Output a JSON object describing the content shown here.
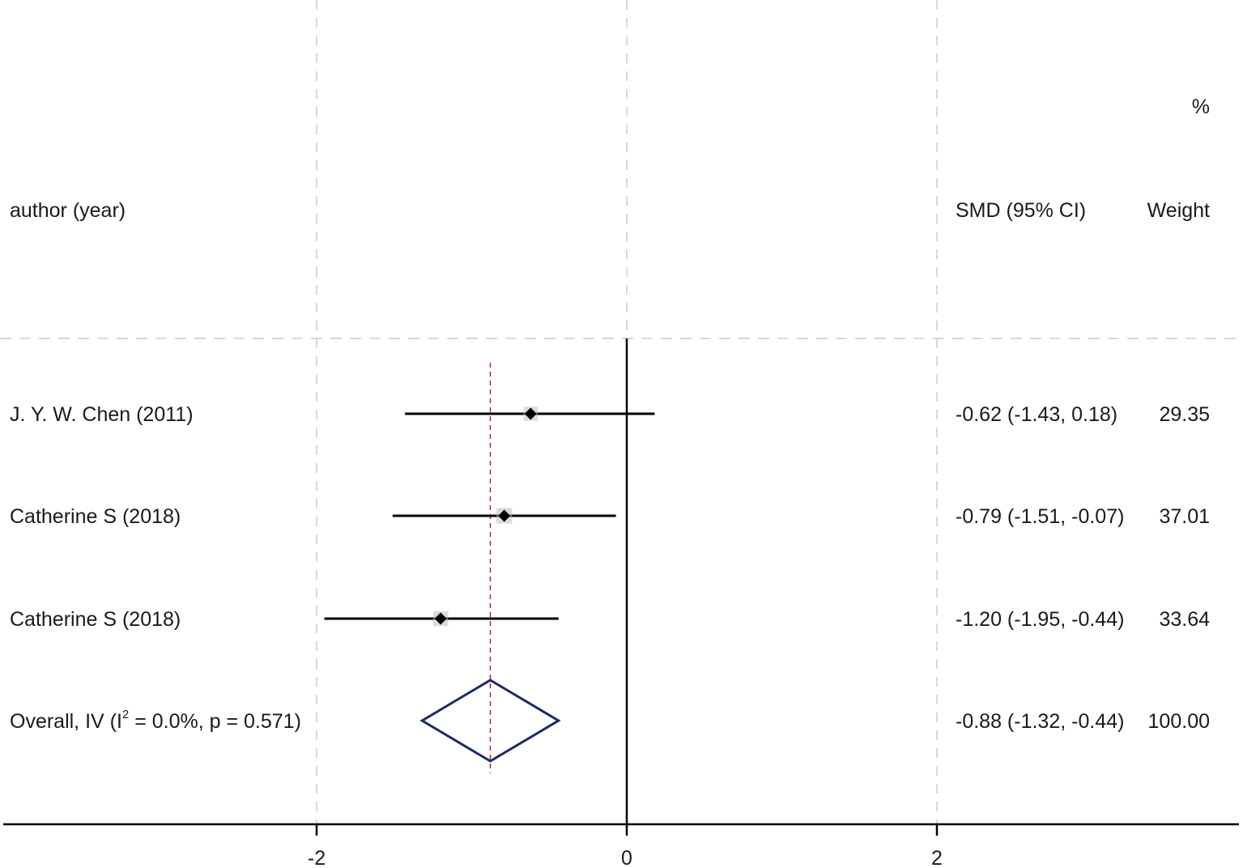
{
  "chart_data": {
    "type": "forest",
    "header": {
      "study_col": "author (year)",
      "effect_col": "SMD (95% CI)",
      "weight_col": "Weight",
      "weight_unit": "%"
    },
    "studies": [
      {
        "label": "J. Y. W. Chen (2011)",
        "est": -0.62,
        "lo": -1.43,
        "hi": 0.18,
        "weight": 29.35,
        "ci_text": "-0.62 (-1.43, 0.18)",
        "weight_text": "29.35"
      },
      {
        "label": "Catherine S (2018)",
        "est": -0.79,
        "lo": -1.51,
        "hi": -0.07,
        "weight": 37.01,
        "ci_text": "-0.79 (-1.51, -0.07)",
        "weight_text": "37.01"
      },
      {
        "label": "Catherine S (2018)",
        "est": -1.2,
        "lo": -1.95,
        "hi": -0.44,
        "weight": 33.64,
        "ci_text": "-1.20 (-1.95, -0.44)",
        "weight_text": "33.64"
      }
    ],
    "overall": {
      "label_pre": "Overall, IV (I",
      "label_sup": "2",
      "label_post": " = 0.0%, p = 0.571)",
      "est": -0.88,
      "lo": -1.32,
      "hi": -0.44,
      "ci_text": "-0.88 (-1.32, -0.44)",
      "weight_text": "100.00"
    },
    "x_ticks": [
      -2,
      0,
      2
    ],
    "x_tick_labels": [
      "-2",
      "0",
      "2"
    ],
    "xlim": [
      -4.05,
      4.0
    ],
    "grid": true,
    "colors": {
      "lines": "#000000",
      "overall_diamond": "#1f2a6b",
      "overall_line": "#a0302a",
      "grid": "#d9d9d9"
    }
  }
}
